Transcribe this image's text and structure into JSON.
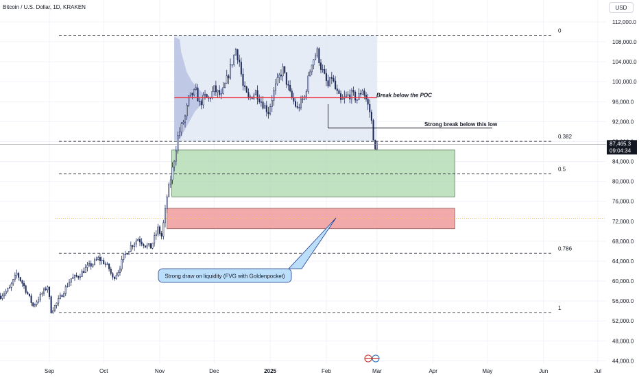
{
  "header": {
    "symbol": "Bitcoin / U.S. Dollar, 1D, KRAKEN",
    "currency_button": "USD"
  },
  "colors": {
    "up": "#26a69a",
    "down": "#ef5350",
    "candle": "#1e2a5a",
    "poc_line": "#f23645",
    "green_zone": "#a5d6a7",
    "red_zone": "#ef9a9a",
    "volume_profile": "#b8c2e0",
    "callout_fill": "#bbdefb",
    "callout_border": "#1e3a8a"
  },
  "chart_data": {
    "type": "candlestick",
    "y_axis": {
      "min": 44000,
      "max": 112000,
      "step": 4000,
      "scale": "linear",
      "ticks": [
        "112,000.0",
        "108,000.0",
        "104,000.0",
        "100,000.0",
        "96,000.0",
        "92,000.0",
        "88,000.0",
        "84,000.0",
        "80,000.0",
        "76,000.0",
        "72,000.0",
        "68,000.0",
        "64,000.0",
        "60,000.0",
        "56,000.0",
        "52,000.0",
        "48,000.0",
        "44,000.0"
      ]
    },
    "x_axis": {
      "ticks": [
        {
          "label": "Sep",
          "day": 0
        },
        {
          "label": "Oct",
          "day": 30
        },
        {
          "label": "Nov",
          "day": 61
        },
        {
          "label": "Dec",
          "day": 91
        },
        {
          "label": "2025",
          "day": 122
        },
        {
          "label": "Feb",
          "day": 153
        },
        {
          "label": "Mar",
          "day": 181
        },
        {
          "label": "Apr",
          "day": 212
        },
        {
          "label": "May",
          "day": 242
        },
        {
          "label": "Jun",
          "day": 273
        },
        {
          "label": "Jul",
          "day": 303
        }
      ]
    },
    "price_path": [
      [
        -27,
        57000
      ],
      [
        -22,
        58500
      ],
      [
        -18,
        61500
      ],
      [
        -14,
        59000
      ],
      [
        -9,
        55000
      ],
      [
        -5,
        57000
      ],
      [
        -1,
        59000
      ],
      [
        1,
        54000
      ],
      [
        4,
        55500
      ],
      [
        8,
        58000
      ],
      [
        12,
        60500
      ],
      [
        16,
        61000
      ],
      [
        20,
        62500
      ],
      [
        24,
        63500
      ],
      [
        27,
        64500
      ],
      [
        30,
        63800
      ],
      [
        33,
        62500
      ],
      [
        35,
        60500
      ],
      [
        38,
        62000
      ],
      [
        41,
        64800
      ],
      [
        45,
        67000
      ],
      [
        49,
        68500
      ],
      [
        53,
        67200
      ],
      [
        56,
        66800
      ],
      [
        59,
        69500
      ],
      [
        60,
        70500
      ],
      [
        62,
        69000
      ],
      [
        64,
        74000
      ],
      [
        65,
        77000
      ],
      [
        67,
        80500
      ],
      [
        69,
        84500
      ],
      [
        71,
        89000
      ],
      [
        73,
        91000
      ],
      [
        75,
        93000
      ],
      [
        77,
        96500
      ],
      [
        79,
        97500
      ],
      [
        81,
        98000
      ],
      [
        83,
        95500
      ],
      [
        86,
        97000
      ],
      [
        88,
        96500
      ],
      [
        91,
        98500
      ],
      [
        95,
        97000
      ],
      [
        99,
        101500
      ],
      [
        103,
        106500
      ],
      [
        105,
        104000
      ],
      [
        107,
        99000
      ],
      [
        110,
        96500
      ],
      [
        114,
        98000
      ],
      [
        118,
        95500
      ],
      [
        121,
        94000
      ],
      [
        124,
        98000
      ],
      [
        127,
        101000
      ],
      [
        129,
        102500
      ],
      [
        133,
        97500
      ],
      [
        137,
        94500
      ],
      [
        141,
        97000
      ],
      [
        145,
        104000
      ],
      [
        148,
        106000
      ],
      [
        150,
        103000
      ],
      [
        152,
        101000
      ],
      [
        154,
        99000
      ],
      [
        156,
        101000
      ],
      [
        158,
        98500
      ],
      [
        161,
        96000
      ],
      [
        164,
        97000
      ],
      [
        167,
        97500
      ],
      [
        170,
        96500
      ],
      [
        173,
        98500
      ],
      [
        175,
        96500
      ],
      [
        177,
        94000
      ],
      [
        178,
        92000
      ],
      [
        179,
        89000
      ],
      [
        180,
        86000
      ],
      [
        181,
        87465
      ]
    ],
    "candle_dims": {
      "body_ratio": 0.55,
      "wick_ratio": 0.9
    },
    "last_price": {
      "value": 87465.3,
      "label": "87,465.3",
      "countdown": "09:04:34"
    },
    "fib_levels": [
      {
        "label": "0",
        "value": 109300
      },
      {
        "label": "0.382",
        "value": 88050
      },
      {
        "label": "0.5",
        "value": 81500
      },
      {
        "label": "0.786",
        "value": 65600
      },
      {
        "label": "1",
        "value": 53700
      }
    ],
    "poc": {
      "value": 96800,
      "label": "Break below the POC"
    },
    "strong_low": {
      "value": 90700,
      "label": "Strong break below this low"
    },
    "zones": [
      {
        "name": "fvg-green",
        "from": 76900,
        "to": 86300
      },
      {
        "name": "goldenpocket-red",
        "from": 70500,
        "to": 74600
      }
    ],
    "callout": {
      "label": "Strong draw on liquidity (FVG with Goldenpocket)"
    }
  }
}
